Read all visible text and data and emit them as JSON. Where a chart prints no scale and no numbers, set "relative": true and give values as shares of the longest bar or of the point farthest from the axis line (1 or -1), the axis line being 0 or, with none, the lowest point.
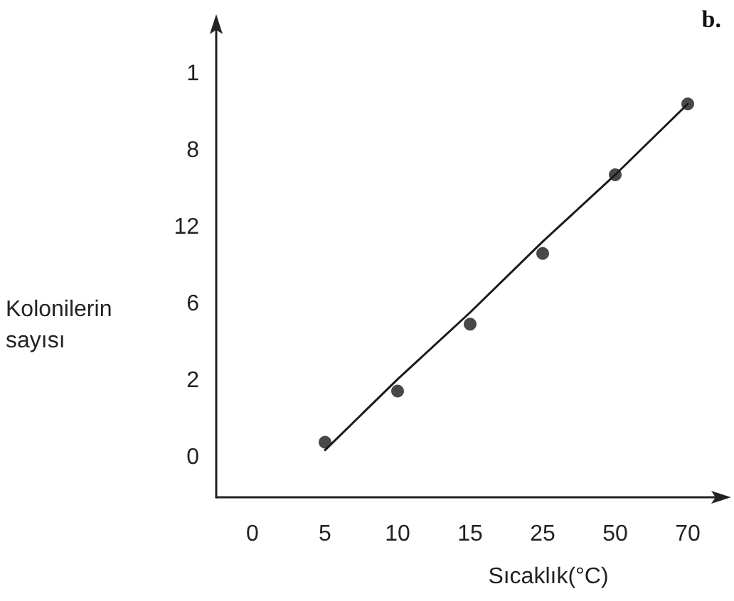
{
  "chart_data": {
    "type": "scatter",
    "title": "b.",
    "xlabel": "Sıcaklık(°C)",
    "ylabel": "Kolonilerin sayısı",
    "categories": [
      "0",
      "5",
      "10",
      "15",
      "25",
      "50",
      "70"
    ],
    "relative": true,
    "series": [
      {
        "color": "#1a1a1a",
        "values": [
          null,
          0.14,
          0.27,
          0.44,
          0.62,
          0.82,
          1.0
        ],
        "marker": "circle"
      },
      {
        "type": "line",
        "color": "#1a1a1a",
        "values": [
          null,
          0.12,
          0.3,
          0.47,
          0.65,
          0.82,
          1.0
        ],
        "marker": "none",
        "line_style": "solid"
      }
    ],
    "annotations": [
      "1",
      "8",
      "12",
      "6",
      "2",
      "0"
    ],
    "grid": false
  }
}
